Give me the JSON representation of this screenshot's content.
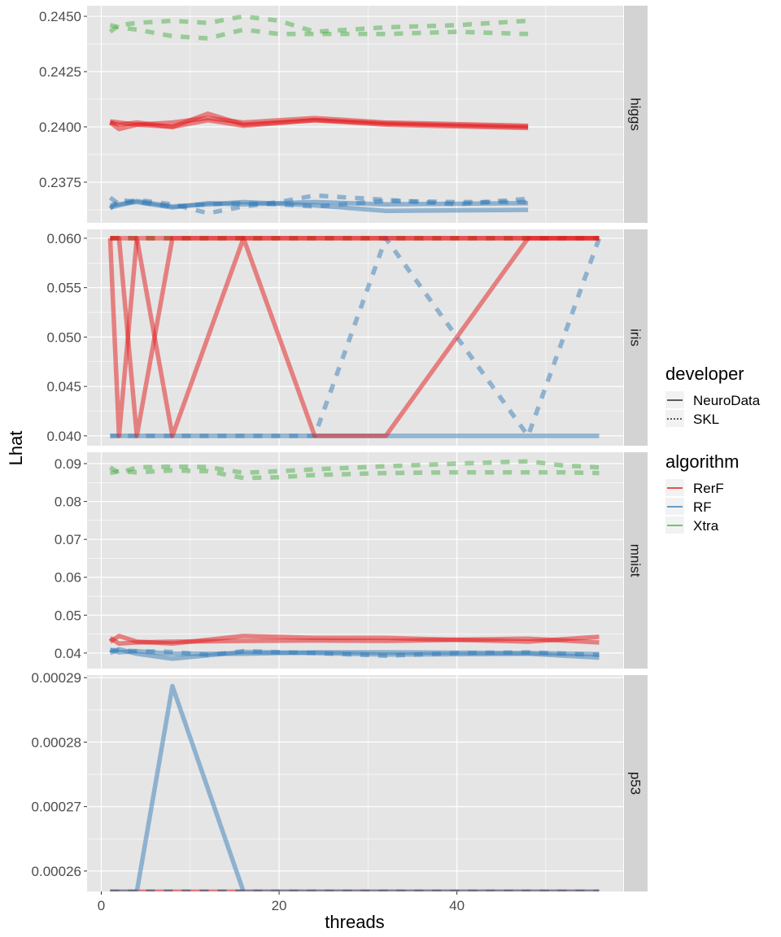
{
  "chart_data": {
    "type": "line",
    "xlabel": "threads",
    "ylabel": "Lhat",
    "x_ticks": [
      0,
      20,
      40
    ],
    "xlim": [
      -1.6,
      58.7
    ],
    "grid": true,
    "facet_by": "dataset",
    "colors": {
      "RerF": "#E41A1C",
      "RF": "#377EB8",
      "Xtra": "#4DAF4A",
      "panel_bg": "#E5E5E5",
      "strip_bg": "#D3D3D3",
      "grid": "#FFFFFF"
    },
    "legend": {
      "placement": "right",
      "developer": {
        "title": "developer",
        "items": [
          {
            "label": "NeuroData",
            "linetype": "solid"
          },
          {
            "label": "SKL",
            "linetype": "dotted"
          }
        ]
      },
      "algorithm": {
        "title": "algorithm",
        "items": [
          {
            "label": "RerF",
            "color": "#E41A1C"
          },
          {
            "label": "RF",
            "color": "#377EB8"
          },
          {
            "label": "Xtra",
            "color": "#4DAF4A"
          }
        ]
      }
    },
    "panels": [
      {
        "name": "higgs",
        "ylim": [
          0.23566,
          0.24548
        ],
        "y_ticks": [
          0.2375,
          0.24,
          0.2425,
          0.245
        ],
        "y_tick_labels": [
          "0.2375",
          "0.2400",
          "0.2425",
          "0.2450"
        ],
        "series": [
          {
            "algorithm": "Xtra",
            "developer": "SKL",
            "x": [
              1,
              2,
              4,
              8,
              12,
              16,
              20,
              24,
              32,
              40,
              48
            ],
            "y": [
              0.2443,
              0.2446,
              0.2447,
              0.2448,
              0.2447,
              0.245,
              0.2448,
              0.2443,
              0.2445,
              0.2446,
              0.2448
            ]
          },
          {
            "algorithm": "Xtra",
            "developer": "SKL",
            "x": [
              1,
              2,
              4,
              8,
              12,
              16,
              20,
              24,
              32,
              40,
              48
            ],
            "y": [
              0.2446,
              0.2445,
              0.2444,
              0.2441,
              0.244,
              0.2444,
              0.2442,
              0.2442,
              0.2442,
              0.2443,
              0.2442
            ]
          },
          {
            "algorithm": "RerF",
            "developer": "NeuroData",
            "x": [
              1,
              2,
              4,
              8,
              12,
              16,
              24,
              32,
              48
            ],
            "y": [
              0.2402,
              0.2399,
              0.2401,
              0.24,
              0.2406,
              0.2401,
              0.2403,
              0.2401,
              0.23995
            ]
          },
          {
            "algorithm": "RerF",
            "developer": "NeuroData",
            "x": [
              1,
              2,
              4,
              8,
              12,
              16,
              24,
              32,
              48
            ],
            "y": [
              0.24025,
              0.2402,
              0.2401,
              0.2402,
              0.2404,
              0.2402,
              0.2404,
              0.2402,
              0.24005
            ]
          },
          {
            "algorithm": "RerF",
            "developer": "NeuroData",
            "x": [
              1,
              2,
              4,
              8,
              12,
              16,
              24,
              32,
              48
            ],
            "y": [
              0.2402,
              0.2401,
              0.2402,
              0.24,
              0.2403,
              0.24005,
              0.2403,
              0.24015,
              0.24
            ]
          },
          {
            "algorithm": "RF",
            "developer": "NeuroData",
            "x": [
              1,
              4,
              8,
              12,
              16,
              24,
              32,
              48
            ],
            "y": [
              0.23635,
              0.23665,
              0.2364,
              0.2365,
              0.2366,
              0.23645,
              0.2362,
              0.23625
            ]
          },
          {
            "algorithm": "RF",
            "developer": "NeuroData",
            "x": [
              1,
              4,
              8,
              12,
              16,
              24,
              32,
              48
            ],
            "y": [
              0.23645,
              0.2366,
              0.23635,
              0.23655,
              0.2365,
              0.2366,
              0.2365,
              0.23655
            ]
          },
          {
            "algorithm": "RF",
            "developer": "SKL",
            "x": [
              1,
              2,
              4,
              8,
              12,
              16,
              20,
              24,
              32,
              40,
              48
            ],
            "y": [
              0.2368,
              0.2365,
              0.2367,
              0.2365,
              0.2361,
              0.2364,
              0.2366,
              0.2369,
              0.2367,
              0.2365,
              0.23675
            ]
          },
          {
            "algorithm": "RF",
            "developer": "SKL",
            "x": [
              1,
              2,
              4,
              8,
              12,
              16,
              20,
              24,
              32,
              40,
              48
            ],
            "y": [
              0.2363,
              0.2367,
              0.2366,
              0.2364,
              0.2365,
              0.23655,
              0.2365,
              0.2364,
              0.23665,
              0.2366,
              0.2366
            ]
          }
        ]
      },
      {
        "name": "iris",
        "ylim": [
          0.039,
          0.0609
        ],
        "y_ticks": [
          0.04,
          0.045,
          0.05,
          0.055,
          0.06
        ],
        "y_tick_labels": [
          "0.040",
          "0.045",
          "0.050",
          "0.055",
          "0.060"
        ],
        "series": [
          {
            "algorithm": "RerF",
            "developer": "SKL",
            "x": [
              1,
              56
            ],
            "y": [
              0.06,
              0.06
            ]
          },
          {
            "algorithm": "Xtra",
            "developer": "SKL",
            "x": [
              1,
              56
            ],
            "y": [
              0.06,
              0.06
            ]
          },
          {
            "algorithm": "RF",
            "developer": "NeuroData",
            "x": [
              1,
              56
            ],
            "y": [
              0.04,
              0.04
            ]
          },
          {
            "algorithm": "RF",
            "developer": "SKL",
            "x": [
              1,
              2,
              4,
              8,
              16,
              24,
              32,
              48,
              56
            ],
            "y": [
              0.04,
              0.04,
              0.04,
              0.04,
              0.04,
              0.04,
              0.06,
              0.04,
              0.06
            ]
          },
          {
            "algorithm": "RerF",
            "developer": "NeuroData",
            "x": [
              1,
              2,
              4,
              8,
              16,
              24,
              32,
              48,
              56
            ],
            "y": [
              0.06,
              0.06,
              0.04,
              0.06,
              0.06,
              0.06,
              0.06,
              0.06,
              0.06
            ]
          },
          {
            "algorithm": "RerF",
            "developer": "NeuroData",
            "x": [
              1,
              2,
              4,
              8,
              16,
              24,
              32,
              48,
              56
            ],
            "y": [
              0.06,
              0.06,
              0.06,
              0.04,
              0.06,
              0.04,
              0.04,
              0.06,
              0.06
            ]
          },
          {
            "algorithm": "RerF",
            "developer": "NeuroData",
            "x": [
              1,
              2,
              4,
              8,
              16,
              24,
              32,
              48,
              56
            ],
            "y": [
              0.06,
              0.04,
              0.06,
              0.06,
              0.06,
              0.06,
              0.06,
              0.06,
              0.06
            ]
          }
        ]
      },
      {
        "name": "mnist",
        "ylim": [
          0.0359,
          0.093
        ],
        "y_ticks": [
          0.04,
          0.05,
          0.06,
          0.07,
          0.08,
          0.09
        ],
        "y_tick_labels": [
          "0.04",
          "0.05",
          "0.06",
          "0.07",
          "0.08",
          "0.09"
        ],
        "series": [
          {
            "algorithm": "Xtra",
            "developer": "SKL",
            "x": [
              1,
              2,
              4,
              8,
              12,
              16,
              20,
              24,
              32,
              40,
              48,
              52,
              56
            ],
            "y": [
              0.089,
              0.0875,
              0.089,
              0.0892,
              0.0891,
              0.0876,
              0.088,
              0.0885,
              0.0893,
              0.09,
              0.0906,
              0.0895,
              0.089
            ]
          },
          {
            "algorithm": "Xtra",
            "developer": "SKL",
            "x": [
              1,
              2,
              4,
              8,
              12,
              16,
              20,
              24,
              32,
              40,
              48,
              52,
              56
            ],
            "y": [
              0.0875,
              0.088,
              0.0877,
              0.0882,
              0.088,
              0.0862,
              0.0864,
              0.087,
              0.0875,
              0.0877,
              0.0877,
              0.0877,
              0.0875
            ]
          },
          {
            "algorithm": "RerF",
            "developer": "NeuroData",
            "x": [
              1,
              2,
              4,
              8,
              16,
              24,
              32,
              48,
              56
            ],
            "y": [
              0.043,
              0.0445,
              0.043,
              0.0425,
              0.0445,
              0.044,
              0.044,
              0.043,
              0.0443
            ]
          },
          {
            "algorithm": "RerF",
            "developer": "NeuroData",
            "x": [
              1,
              2,
              4,
              8,
              16,
              24,
              32,
              48,
              56
            ],
            "y": [
              0.044,
              0.0425,
              0.0428,
              0.043,
              0.0432,
              0.0433,
              0.0432,
              0.0438,
              0.0428
            ]
          },
          {
            "algorithm": "RF",
            "developer": "NeuroData",
            "x": [
              1,
              2,
              4,
              8,
              16,
              24,
              32,
              48,
              56
            ],
            "y": [
              0.04,
              0.041,
              0.0398,
              0.0385,
              0.0403,
              0.04,
              0.0396,
              0.0398,
              0.0388
            ]
          },
          {
            "algorithm": "RF",
            "developer": "NeuroData",
            "x": [
              1,
              2,
              4,
              8,
              16,
              24,
              32,
              48,
              56
            ],
            "y": [
              0.0408,
              0.0402,
              0.0405,
              0.0398,
              0.0398,
              0.0402,
              0.0402,
              0.04,
              0.0397
            ]
          },
          {
            "algorithm": "RF",
            "developer": "SKL",
            "x": [
              1,
              4,
              8,
              12,
              16,
              24,
              32,
              40,
              48,
              56
            ],
            "y": [
              0.0408,
              0.0405,
              0.0403,
              0.0395,
              0.0405,
              0.04,
              0.0393,
              0.04,
              0.0402,
              0.0395
            ]
          }
        ]
      },
      {
        "name": "p53",
        "ylim": [
          0.00025683,
          0.0002904
        ],
        "y_ticks": [
          0.00026,
          0.00027,
          0.00028,
          0.00029
        ],
        "y_tick_labels": [
          "0.00026",
          "0.00027",
          "0.00028",
          "0.00029"
        ],
        "series": [
          {
            "algorithm": "RerF",
            "developer": "NeuroData",
            "x": [
              1,
              56
            ],
            "y": [
              0.0002568,
              0.0002568
            ]
          },
          {
            "algorithm": "RF",
            "developer": "NeuroData",
            "x": [
              1,
              2,
              4,
              8,
              16,
              24,
              32,
              48,
              56
            ],
            "y": [
              0.0002568,
              0.0002568,
              0.0002568,
              0.0002887,
              0.0002568,
              0.0002568,
              0.0002568,
              0.0002568,
              0.0002568
            ]
          },
          {
            "algorithm": "Xtra",
            "developer": "SKL",
            "x": [
              1,
              56
            ],
            "y": [
              0.0002568,
              0.0002568
            ]
          },
          {
            "algorithm": "RerF",
            "developer": "SKL",
            "x": [
              1,
              56
            ],
            "y": [
              0.0002568,
              0.0002568
            ]
          },
          {
            "algorithm": "RF",
            "developer": "SKL",
            "x": [
              1,
              56
            ],
            "y": [
              0.0002568,
              0.0002568
            ]
          }
        ]
      }
    ]
  }
}
